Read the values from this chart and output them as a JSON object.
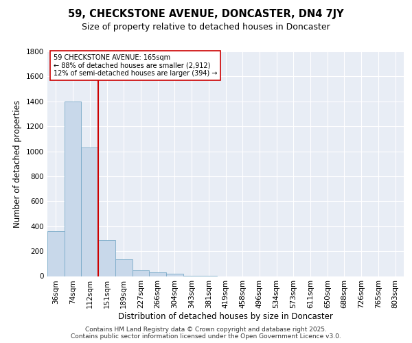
{
  "title_line1": "59, CHECKSTONE AVENUE, DONCASTER, DN4 7JY",
  "title_line2": "Size of property relative to detached houses in Doncaster",
  "xlabel": "Distribution of detached houses by size in Doncaster",
  "ylabel": "Number of detached properties",
  "bin_labels": [
    "36sqm",
    "74sqm",
    "112sqm",
    "151sqm",
    "189sqm",
    "227sqm",
    "266sqm",
    "304sqm",
    "343sqm",
    "381sqm",
    "419sqm",
    "458sqm",
    "496sqm",
    "534sqm",
    "573sqm",
    "611sqm",
    "650sqm",
    "688sqm",
    "726sqm",
    "765sqm",
    "803sqm"
  ],
  "bar_heights": [
    360,
    1400,
    1030,
    290,
    135,
    45,
    30,
    20,
    5,
    3,
    0,
    0,
    0,
    0,
    0,
    0,
    0,
    0,
    0,
    0,
    0
  ],
  "bar_color": "#c8d8ea",
  "bar_edge_color": "#7aaac8",
  "property_line_color": "#cc0000",
  "annotation_text": "59 CHECKSTONE AVENUE: 165sqm\n← 88% of detached houses are smaller (2,912)\n12% of semi-detached houses are larger (394) →",
  "annotation_box_color": "white",
  "annotation_box_edge_color": "#cc0000",
  "ylim": [
    0,
    1800
  ],
  "yticks": [
    0,
    200,
    400,
    600,
    800,
    1000,
    1200,
    1400,
    1600,
    1800
  ],
  "background_color": "#e8edf5",
  "grid_color": "white",
  "footer_text": "Contains HM Land Registry data © Crown copyright and database right 2025.\nContains public sector information licensed under the Open Government Licence v3.0.",
  "title_fontsize": 10.5,
  "subtitle_fontsize": 9,
  "axis_label_fontsize": 8.5,
  "tick_fontsize": 7.5,
  "footer_fontsize": 6.5
}
